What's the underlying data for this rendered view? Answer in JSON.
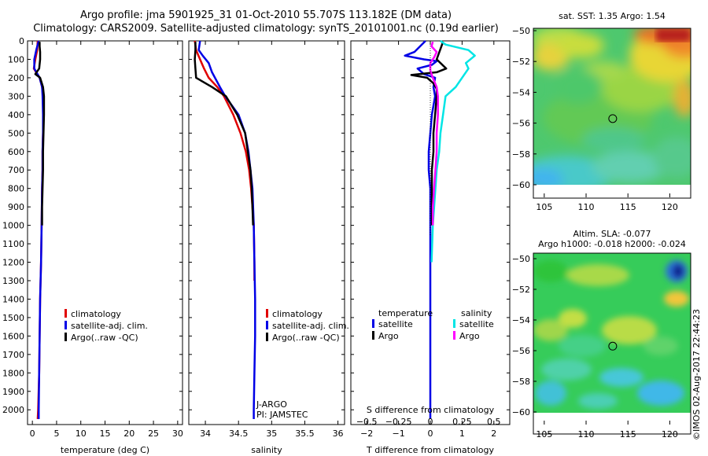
{
  "header": {
    "line1": "Argo profile: jma 5901925_31 01-Oct-2010 55.707S 113.182E (DM data)",
    "line2": "Climatology: CARS2009. Satellite-adjusted climatology: synTS_20101001.nc (0.19d earlier)"
  },
  "colors": {
    "climatology": "#e00000",
    "satellite": "#0000e6",
    "argo": "#000000",
    "satellite_salinity": "#00e5e5",
    "argo_salinity": "#ff00ff"
  },
  "maps": {
    "sst_title": "sat. SST: 1.35 Argo: 1.54",
    "sla_title_1": "Altim. SLA: -0.077",
    "sla_title_2": "Argo h1000: -0.018 h2000: -0.024",
    "lon_ticks": [
      105,
      110,
      115,
      120
    ],
    "lat_ticks": [
      -50,
      -52,
      -54,
      -56,
      -58,
      -60
    ],
    "float_lon": 113.182,
    "float_lat": -55.707
  },
  "stamp": "©IMOS 02-Aug-2017 22:44:23",
  "chart_data": [
    {
      "type": "line",
      "panel": "temperature",
      "xlabel": "temperature (deg C)",
      "ylabel": "",
      "xlim": [
        -1,
        31
      ],
      "ylim": [
        2080,
        0
      ],
      "x_ticks": [
        0,
        5,
        10,
        15,
        20,
        25,
        30
      ],
      "y_ticks": [
        0,
        100,
        200,
        300,
        400,
        500,
        600,
        700,
        800,
        900,
        1000,
        1100,
        1200,
        1300,
        1400,
        1500,
        1600,
        1700,
        1800,
        1900,
        2000
      ],
      "legend": [
        "climatology",
        "satellite-adj. clim.",
        "Argo(..raw -QC)"
      ],
      "series": [
        {
          "name": "climatology",
          "color": "#e00000",
          "depth": [
            0,
            50,
            100,
            150,
            200,
            250,
            300,
            400,
            500,
            600,
            700,
            800,
            1000,
            1200,
            1400,
            1600,
            1800,
            2000,
            2050
          ],
          "values": [
            1.1,
            1.0,
            0.6,
            0.3,
            1.5,
            2.0,
            2.2,
            2.3,
            2.2,
            2.1,
            2.1,
            2.0,
            1.9,
            1.8,
            1.6,
            1.5,
            1.4,
            1.2,
            1.1
          ]
        },
        {
          "name": "satellite-adj. clim.",
          "color": "#0000e6",
          "depth": [
            0,
            50,
            100,
            150,
            200,
            250,
            300,
            400,
            500,
            600,
            700,
            800,
            1000,
            1200,
            1400,
            1600,
            1800,
            2000,
            2050
          ],
          "values": [
            1.3,
            0.8,
            0.4,
            0.4,
            1.5,
            2.0,
            2.1,
            2.2,
            2.2,
            2.1,
            2.1,
            2.0,
            1.9,
            1.8,
            1.6,
            1.5,
            1.4,
            1.3,
            1.3
          ]
        },
        {
          "name": "Argo(..raw -QC)",
          "color": "#000000",
          "depth": [
            5,
            30,
            60,
            100,
            150,
            180,
            200,
            250,
            300,
            400,
            500,
            600,
            700,
            800,
            900,
            1000
          ],
          "values": [
            1.5,
            1.5,
            1.6,
            1.6,
            1.4,
            0.6,
            1.6,
            2.2,
            2.4,
            2.4,
            2.3,
            2.2,
            2.2,
            2.1,
            2.0,
            2.0
          ]
        }
      ]
    },
    {
      "type": "line",
      "panel": "salinity",
      "xlabel": "salinity",
      "xlim": [
        33.75,
        36.1
      ],
      "ylim": [
        2080,
        0
      ],
      "x_ticks": [
        34,
        34.5,
        35,
        35.5,
        36
      ],
      "legend": [
        "climatology",
        "satellite-adj. clim.",
        "Argo(..raw -QC)"
      ],
      "annotations": [
        "J-ARGO",
        "PI: JAMSTEC"
      ],
      "series": [
        {
          "name": "climatology",
          "color": "#e00000",
          "depth": [
            0,
            50,
            100,
            150,
            200,
            250,
            300,
            400,
            500,
            600,
            700,
            800,
            1000,
            1200,
            1300
          ],
          "values": [
            33.84,
            33.86,
            33.92,
            33.98,
            34.05,
            34.18,
            34.28,
            34.42,
            34.53,
            34.61,
            34.66,
            34.69,
            34.73,
            34.74,
            34.74
          ]
        },
        {
          "name": "satellite-adj. clim.",
          "color": "#0000e6",
          "depth": [
            0,
            50,
            80,
            120,
            170,
            250,
            300,
            400,
            500,
            600,
            700,
            800,
            1000,
            1200,
            1400,
            1600,
            1800,
            2000,
            2050
          ],
          "values": [
            33.92,
            33.9,
            33.96,
            34.05,
            34.1,
            34.22,
            34.3,
            34.5,
            34.6,
            34.65,
            34.68,
            34.71,
            34.73,
            34.74,
            34.75,
            34.75,
            34.74,
            34.73,
            34.73
          ]
        },
        {
          "name": "Argo(..raw -QC)",
          "color": "#000000",
          "depth": [
            5,
            50,
            100,
            150,
            200,
            250,
            300,
            400,
            500,
            600,
            700,
            800,
            900,
            1000
          ],
          "values": [
            33.85,
            33.85,
            33.84,
            33.85,
            33.86,
            34.1,
            34.31,
            34.48,
            34.6,
            34.64,
            34.68,
            34.7,
            34.71,
            34.72
          ]
        }
      ]
    },
    {
      "type": "line",
      "panel": "differences",
      "xlabel": "T difference from climatology",
      "xlabel_top": "S difference from climatology",
      "xlim": [
        -2.5,
        2.5
      ],
      "ylim": [
        2080,
        0
      ],
      "x_ticks": [
        -2,
        -1,
        0,
        1,
        2
      ],
      "s_ticks": [
        -0.5,
        -0.25,
        0,
        0.25,
        0.5
      ],
      "legend_headers": [
        "temperature",
        "salinity"
      ],
      "legend": [
        "satellite",
        "Argo",
        "satellite",
        "Argo"
      ],
      "series": [
        {
          "name": "temperature satellite",
          "color": "#0000e6",
          "depth": [
            0,
            60,
            80,
            100,
            110,
            130,
            150,
            180,
            200,
            250,
            300,
            400,
            500,
            600,
            700,
            800,
            1000,
            1200,
            1400,
            1600,
            1800,
            2000,
            2050
          ],
          "values": [
            -0.15,
            -0.5,
            -0.8,
            -0.2,
            0.2,
            0.05,
            -0.4,
            -0.2,
            0.15,
            0.1,
            0.15,
            0.05,
            0.0,
            -0.05,
            -0.05,
            0.0,
            0.0,
            0.0,
            0.0,
            0.0,
            0.0,
            0.0,
            0.0
          ]
        },
        {
          "name": "temperature Argo",
          "color": "#000000",
          "depth": [
            5,
            100,
            150,
            170,
            185,
            200,
            230,
            260,
            300,
            400,
            500,
            600,
            700,
            800,
            900,
            1000
          ],
          "values": [
            0.4,
            0.2,
            0.5,
            0.2,
            -0.6,
            -0.1,
            0.1,
            0.2,
            0.2,
            0.15,
            0.1,
            0.1,
            0.05,
            0.05,
            0.05,
            0.05
          ]
        },
        {
          "name": "salinity satellite",
          "color": "#00e5e5",
          "depth": [
            0,
            20,
            50,
            80,
            120,
            150,
            200,
            250,
            300,
            400,
            500,
            600,
            700,
            800,
            1000,
            1200
          ],
          "values": [
            0.08,
            0.12,
            0.3,
            0.35,
            0.28,
            0.3,
            0.25,
            0.2,
            0.12,
            0.1,
            0.08,
            0.07,
            0.05,
            0.04,
            0.02,
            0.01
          ]
        },
        {
          "name": "salinity Argo",
          "color": "#ff00ff",
          "depth": [
            5,
            30,
            60,
            90,
            120,
            160,
            200,
            250,
            300,
            400,
            500,
            600,
            700,
            800,
            900,
            1000
          ],
          "values": [
            0.02,
            0.01,
            0.05,
            0.03,
            0.0,
            0.0,
            0.02,
            0.05,
            0.06,
            0.06,
            0.05,
            0.05,
            0.04,
            0.03,
            0.02,
            0.02
          ]
        }
      ]
    }
  ]
}
